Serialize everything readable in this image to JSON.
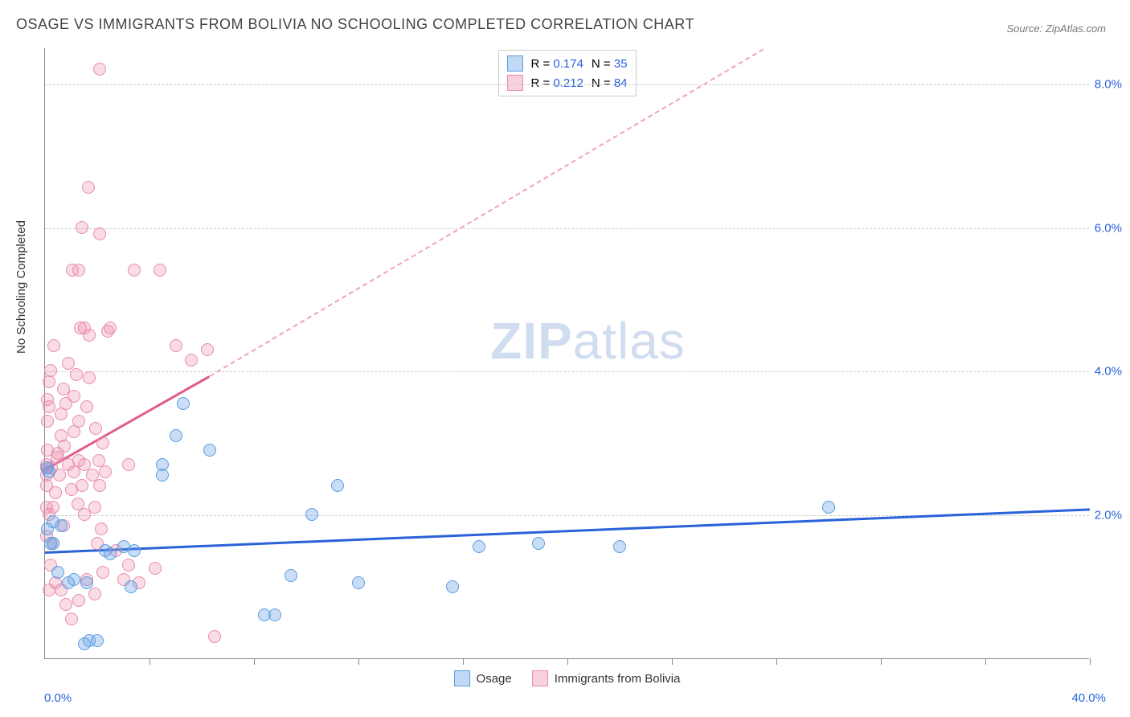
{
  "title": "OSAGE VS IMMIGRANTS FROM BOLIVIA NO SCHOOLING COMPLETED CORRELATION CHART",
  "source_label": "Source: ZipAtlas.com",
  "ylabel": "No Schooling Completed",
  "watermark_a": "ZIP",
  "watermark_b": "atlas",
  "chart": {
    "type": "scatter",
    "xlim": [
      0,
      40
    ],
    "ylim": [
      0,
      8.5
    ],
    "xtick_labels": {
      "0": "0.0%",
      "40": "40.0%"
    },
    "xtick_positions": [
      0,
      4,
      8,
      12,
      16,
      20,
      24,
      28,
      32,
      36,
      40
    ],
    "ytick_positions": [
      2,
      4,
      6,
      8
    ],
    "ytick_labels": {
      "2": "2.0%",
      "4": "4.0%",
      "6": "6.0%",
      "8": "8.0%"
    },
    "grid_color": "#cccccc",
    "background": "#ffffff",
    "series": [
      {
        "name": "Osage",
        "color_fill": "rgba(100,160,230,0.35)",
        "color_stroke": "#5a9de0",
        "trend_color": "#2962d9",
        "R": "0.174",
        "N": "35",
        "trend": {
          "x1": 0,
          "y1": 1.5,
          "x2": 40,
          "y2": 2.1
        },
        "points": [
          [
            0.1,
            2.65
          ],
          [
            0.1,
            1.8
          ],
          [
            0.3,
            1.6
          ],
          [
            0.3,
            1.9
          ],
          [
            0.2,
            1.6
          ],
          [
            0.6,
            1.85
          ],
          [
            0.5,
            1.2
          ],
          [
            0.9,
            1.05
          ],
          [
            1.1,
            1.1
          ],
          [
            1.5,
            0.2
          ],
          [
            1.7,
            0.25
          ],
          [
            1.6,
            1.05
          ],
          [
            2.3,
            1.5
          ],
          [
            2.5,
            1.45
          ],
          [
            3.0,
            1.55
          ],
          [
            3.4,
            1.5
          ],
          [
            4.5,
            2.7
          ],
          [
            5.0,
            3.1
          ],
          [
            5.3,
            3.55
          ],
          [
            6.3,
            2.9
          ],
          [
            8.4,
            0.6
          ],
          [
            8.8,
            0.6
          ],
          [
            9.4,
            1.15
          ],
          [
            10.2,
            2.0
          ],
          [
            11.2,
            2.4
          ],
          [
            12.0,
            1.05
          ],
          [
            15.6,
            1.0
          ],
          [
            16.6,
            1.55
          ],
          [
            18.9,
            1.6
          ],
          [
            22.0,
            1.55
          ],
          [
            30.0,
            2.1
          ],
          [
            4.5,
            2.55
          ],
          [
            2.0,
            0.25
          ],
          [
            3.3,
            1.0
          ],
          [
            0.15,
            2.6
          ]
        ]
      },
      {
        "name": "Immigrants from Bolivia",
        "color_fill": "rgba(240,140,170,0.3)",
        "color_stroke": "#e78bb0",
        "trend_color": "#e05b8a",
        "R": "0.212",
        "N": "84",
        "trend_solid": {
          "x1": 0,
          "y1": 2.65,
          "x2": 6.3,
          "y2": 3.95
        },
        "trend_dash": {
          "x1": 6.3,
          "y1": 3.95,
          "x2": 27.5,
          "y2": 8.5
        },
        "points": [
          [
            0.05,
            2.7
          ],
          [
            0.05,
            2.4
          ],
          [
            0.05,
            2.1
          ],
          [
            0.05,
            2.55
          ],
          [
            0.1,
            2.9
          ],
          [
            0.1,
            3.3
          ],
          [
            0.1,
            3.6
          ],
          [
            0.15,
            3.85
          ],
          [
            0.15,
            3.5
          ],
          [
            0.2,
            4.0
          ],
          [
            0.15,
            2.0
          ],
          [
            0.05,
            1.7
          ],
          [
            0.3,
            1.6
          ],
          [
            0.3,
            2.1
          ],
          [
            0.4,
            2.3
          ],
          [
            0.55,
            2.55
          ],
          [
            0.5,
            2.85
          ],
          [
            0.6,
            3.1
          ],
          [
            0.6,
            3.4
          ],
          [
            0.7,
            3.75
          ],
          [
            0.8,
            3.55
          ],
          [
            0.75,
            2.95
          ],
          [
            0.9,
            2.7
          ],
          [
            1.0,
            2.35
          ],
          [
            1.1,
            2.6
          ],
          [
            1.1,
            3.15
          ],
          [
            1.1,
            3.65
          ],
          [
            1.2,
            3.95
          ],
          [
            1.3,
            3.3
          ],
          [
            1.3,
            2.75
          ],
          [
            1.4,
            2.4
          ],
          [
            1.5,
            2.0
          ],
          [
            1.5,
            2.7
          ],
          [
            1.6,
            3.5
          ],
          [
            1.7,
            3.9
          ],
          [
            1.7,
            4.5
          ],
          [
            1.8,
            2.55
          ],
          [
            1.9,
            2.1
          ],
          [
            2.0,
            1.6
          ],
          [
            2.05,
            2.75
          ],
          [
            2.1,
            2.4
          ],
          [
            2.2,
            3.0
          ],
          [
            2.3,
            2.6
          ],
          [
            2.4,
            4.55
          ],
          [
            2.5,
            4.6
          ],
          [
            3.2,
            2.7
          ],
          [
            3.4,
            5.4
          ],
          [
            4.4,
            5.4
          ],
          [
            2.1,
            5.9
          ],
          [
            1.4,
            6.0
          ],
          [
            1.3,
            5.4
          ],
          [
            1.5,
            4.6
          ],
          [
            1.35,
            4.6
          ],
          [
            1.05,
            5.4
          ],
          [
            1.65,
            6.55
          ],
          [
            2.1,
            8.2
          ],
          [
            0.35,
            4.35
          ],
          [
            0.2,
            1.3
          ],
          [
            0.4,
            1.05
          ],
          [
            0.6,
            0.95
          ],
          [
            0.8,
            0.75
          ],
          [
            1.0,
            0.55
          ],
          [
            1.3,
            0.8
          ],
          [
            1.6,
            1.1
          ],
          [
            1.9,
            0.9
          ],
          [
            2.2,
            1.2
          ],
          [
            2.7,
            1.5
          ],
          [
            3.0,
            1.1
          ],
          [
            3.2,
            1.3
          ],
          [
            3.6,
            1.05
          ],
          [
            4.2,
            1.25
          ],
          [
            5.0,
            4.35
          ],
          [
            5.6,
            4.15
          ],
          [
            6.2,
            4.3
          ],
          [
            6.5,
            0.3
          ],
          [
            0.05,
            2.65
          ],
          [
            0.25,
            2.65
          ],
          [
            0.45,
            2.8
          ],
          [
            0.9,
            4.1
          ],
          [
            1.25,
            2.15
          ],
          [
            1.95,
            3.2
          ],
          [
            0.7,
            1.85
          ],
          [
            0.15,
            0.95
          ],
          [
            2.15,
            1.8
          ]
        ]
      }
    ]
  },
  "legend_bottom": [
    {
      "swatch": "blue",
      "label": "Osage"
    },
    {
      "swatch": "pink",
      "label": "Immigrants from Bolivia"
    }
  ]
}
